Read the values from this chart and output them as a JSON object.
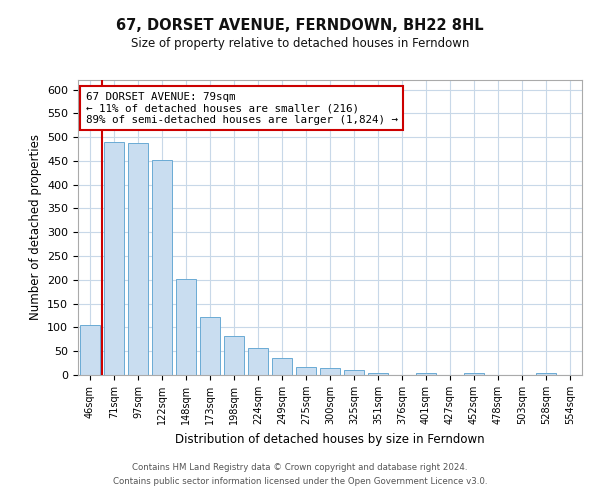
{
  "title": "67, DORSET AVENUE, FERNDOWN, BH22 8HL",
  "subtitle": "Size of property relative to detached houses in Ferndown",
  "xlabel": "Distribution of detached houses by size in Ferndown",
  "ylabel": "Number of detached properties",
  "bin_labels": [
    "46sqm",
    "71sqm",
    "97sqm",
    "122sqm",
    "148sqm",
    "173sqm",
    "198sqm",
    "224sqm",
    "249sqm",
    "275sqm",
    "300sqm",
    "325sqm",
    "351sqm",
    "376sqm",
    "401sqm",
    "427sqm",
    "452sqm",
    "478sqm",
    "503sqm",
    "528sqm",
    "554sqm"
  ],
  "bar_heights": [
    105,
    490,
    487,
    452,
    202,
    122,
    83,
    57,
    35,
    17,
    14,
    10,
    5,
    0,
    4,
    0,
    5,
    0,
    0,
    5,
    0
  ],
  "bar_color": "#c9ddf0",
  "bar_edge_color": "#6aaad4",
  "vline_pos": 1.5,
  "vline_color": "#cc0000",
  "annotation_title": "67 DORSET AVENUE: 79sqm",
  "annotation_line1": "← 11% of detached houses are smaller (216)",
  "annotation_line2": "89% of semi-detached houses are larger (1,824) →",
  "annotation_box_color": "#ffffff",
  "annotation_box_edge": "#cc0000",
  "ylim": [
    0,
    620
  ],
  "yticks": [
    0,
    50,
    100,
    150,
    200,
    250,
    300,
    350,
    400,
    450,
    500,
    550,
    600
  ],
  "footnote1": "Contains HM Land Registry data © Crown copyright and database right 2024.",
  "footnote2": "Contains public sector information licensed under the Open Government Licence v3.0.",
  "bg_color": "#ffffff",
  "grid_color": "#c8d8e8"
}
